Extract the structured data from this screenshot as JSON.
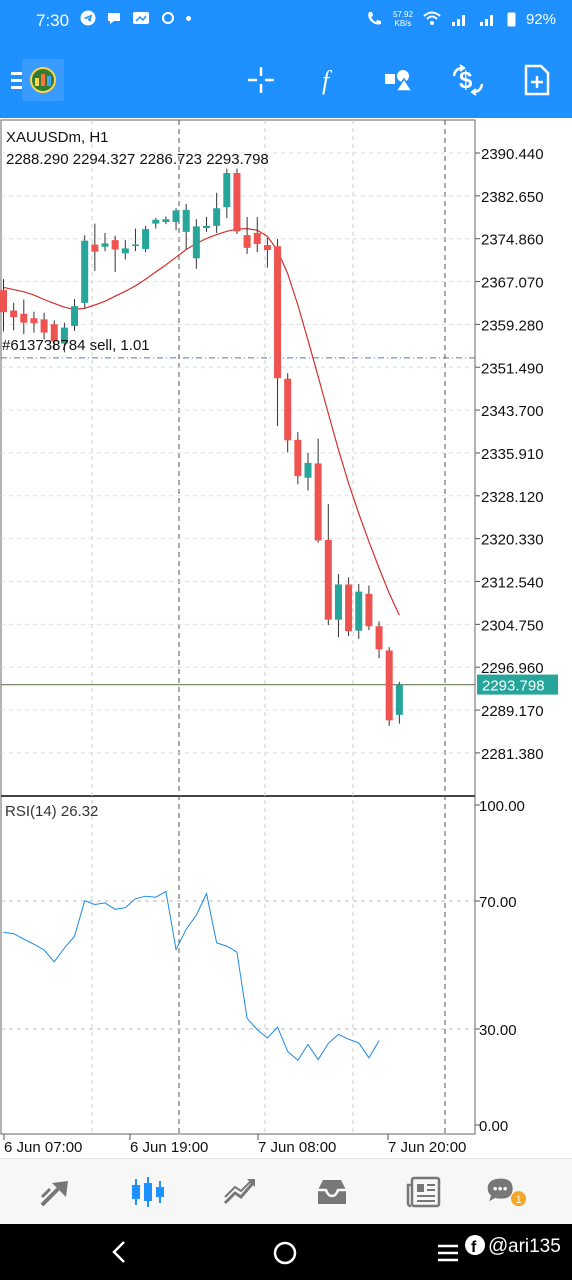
{
  "status_bar": {
    "time": "7:30",
    "net_speed": "57.92",
    "net_unit": "KB/s",
    "battery": "92%"
  },
  "toolbar": {
    "icons": [
      "menu-icon",
      "app-logo-icon",
      "crosshair-icon",
      "function-icon",
      "objects-icon",
      "trade-icon",
      "new-order-icon"
    ]
  },
  "chart": {
    "symbol": "XAUUSDm, H1",
    "ohlc": "2288.290 2294.327 2286.723 2293.798",
    "order_label": "#613738784 sell, 1.01",
    "price_badge": "2293.798",
    "price_labels": [
      "2390.440",
      "2382.650",
      "2374.860",
      "2367.070",
      "2359.280",
      "2351.490",
      "2343.700",
      "2335.910",
      "2328.120",
      "2320.330",
      "2312.540",
      "2304.750",
      "2296.960",
      "2289.170",
      "2281.380"
    ],
    "rsi_label": "RSI(14) 26.32",
    "rsi_levels": [
      "100.00",
      "70.00",
      "30.00",
      "0.00"
    ],
    "time_labels": [
      "6 Jun 07:00",
      "6 Jun 19:00",
      "7 Jun 08:00",
      "7 Jun 20:00"
    ],
    "colors": {
      "bull": "#26a69a",
      "bear": "#ef5350",
      "ma": "#d32f2f",
      "rsi": "#1e88e5",
      "accent": "#1e90ff"
    }
  },
  "chart_data": {
    "type": "candlestick",
    "symbol": "XAUUSDm",
    "timeframe": "H1",
    "ylim": [
      2276,
      2394
    ],
    "candles": [
      {
        "o": 2365.5,
        "h": 2367.5,
        "c": 2361.5,
        "l": 2358.0
      },
      {
        "o": 2361.8,
        "h": 2363.2,
        "c": 2360.6,
        "l": 2358.2
      },
      {
        "o": 2361.2,
        "h": 2363.8,
        "c": 2359.6,
        "l": 2357.5
      },
      {
        "o": 2360.4,
        "h": 2361.6,
        "c": 2359.5,
        "l": 2357.8
      },
      {
        "o": 2360.2,
        "h": 2361.4,
        "c": 2357.8,
        "l": 2356.5
      },
      {
        "o": 2359.3,
        "h": 2360.0,
        "c": 2356.2,
        "l": 2354.6
      },
      {
        "o": 2355.8,
        "h": 2359.6,
        "c": 2358.7,
        "l": 2354.2
      },
      {
        "o": 2359.0,
        "h": 2363.9,
        "c": 2362.6,
        "l": 2358.1
      },
      {
        "o": 2363.2,
        "h": 2375.5,
        "c": 2374.5,
        "l": 2362.2
      },
      {
        "o": 2373.8,
        "h": 2377.6,
        "c": 2372.5,
        "l": 2369.0
      },
      {
        "o": 2373.4,
        "h": 2375.9,
        "c": 2374.0,
        "l": 2372.6
      },
      {
        "o": 2374.6,
        "h": 2375.4,
        "c": 2372.9,
        "l": 2368.8
      },
      {
        "o": 2372.2,
        "h": 2374.6,
        "c": 2373.1,
        "l": 2371.1
      },
      {
        "o": 2373.8,
        "h": 2376.7,
        "c": 2373.8,
        "l": 2372.6
      },
      {
        "o": 2373.0,
        "h": 2377.2,
        "c": 2376.6,
        "l": 2372.4
      },
      {
        "o": 2377.6,
        "h": 2378.6,
        "c": 2378.3,
        "l": 2376.7
      },
      {
        "o": 2377.9,
        "h": 2378.9,
        "c": 2378.4,
        "l": 2377.5
      },
      {
        "o": 2377.9,
        "h": 2380.4,
        "c": 2380.0,
        "l": 2376.4
      },
      {
        "o": 2376.1,
        "h": 2381.2,
        "c": 2380.1,
        "l": 2373.0
      },
      {
        "o": 2371.3,
        "h": 2378.4,
        "c": 2377.1,
        "l": 2369.4
      },
      {
        "o": 2376.8,
        "h": 2378.8,
        "c": 2377.2,
        "l": 2376.1
      },
      {
        "o": 2377.2,
        "h": 2383.2,
        "c": 2380.4,
        "l": 2375.9
      },
      {
        "o": 2380.6,
        "h": 2387.6,
        "c": 2386.8,
        "l": 2378.6
      },
      {
        "o": 2386.8,
        "h": 2387.6,
        "c": 2376.2,
        "l": 2375.7
      },
      {
        "o": 2375.5,
        "h": 2378.8,
        "c": 2373.2,
        "l": 2372.1
      },
      {
        "o": 2375.9,
        "h": 2378.8,
        "c": 2373.9,
        "l": 2372.4
      },
      {
        "o": 2373.7,
        "h": 2375.0,
        "c": 2372.8,
        "l": 2369.6
      },
      {
        "o": 2373.5,
        "h": 2374.8,
        "c": 2349.5,
        "l": 2340.8
      },
      {
        "o": 2349.4,
        "h": 2350.4,
        "c": 2338.2,
        "l": 2336.0
      },
      {
        "o": 2338.3,
        "h": 2339.7,
        "c": 2331.7,
        "l": 2330.2
      },
      {
        "o": 2331.4,
        "h": 2335.9,
        "c": 2334.1,
        "l": 2329.1
      },
      {
        "o": 2334.0,
        "h": 2338.5,
        "c": 2320.0,
        "l": 2319.6
      },
      {
        "o": 2320.1,
        "h": 2326.6,
        "c": 2305.6,
        "l": 2304.6
      },
      {
        "o": 2305.6,
        "h": 2313.9,
        "c": 2312.0,
        "l": 2302.4
      },
      {
        "o": 2312.0,
        "h": 2313.3,
        "c": 2303.5,
        "l": 2302.6
      },
      {
        "o": 2303.6,
        "h": 2312.1,
        "c": 2310.7,
        "l": 2302.1
      },
      {
        "o": 2310.3,
        "h": 2311.8,
        "c": 2304.4,
        "l": 2303.7
      },
      {
        "o": 2304.4,
        "h": 2305.3,
        "c": 2300.2,
        "l": 2298.6
      },
      {
        "o": 2300.0,
        "h": 2300.6,
        "c": 2287.3,
        "l": 2286.3
      },
      {
        "o": 2288.3,
        "h": 2294.3,
        "c": 2293.8,
        "l": 2286.7
      }
    ],
    "ma": [
      2366.0,
      2365.6,
      2365.2,
      2364.6,
      2363.8,
      2363.1,
      2362.4,
      2362.0,
      2362.2,
      2362.8,
      2363.5,
      2364.4,
      2365.3,
      2366.3,
      2367.5,
      2368.8,
      2370.1,
      2371.5,
      2372.9,
      2374.0,
      2374.9,
      2375.6,
      2376.2,
      2376.6,
      2376.7,
      2376.4,
      2375.3,
      2372.7,
      2368.5,
      2362.8,
      2356.4,
      2349.8,
      2343.1,
      2336.5,
      2330.4,
      2324.9,
      2319.8,
      2315.0,
      2310.4,
      2306.4
    ],
    "order_price": 2353.2,
    "current_price": 2293.798,
    "rsi": {
      "period": 14,
      "ylim": [
        0,
        100
      ],
      "levels": [
        30,
        70
      ],
      "values": [
        60.2,
        59.8,
        58.1,
        56.5,
        54.7,
        51.0,
        55.3,
        59.0,
        70.1,
        68.9,
        69.4,
        67.4,
        67.9,
        70.7,
        71.5,
        71.2,
        73.0,
        54.8,
        61.2,
        65.6,
        72.3,
        56.9,
        55.9,
        54.0,
        33.3,
        29.8,
        27.2,
        30.6,
        23.0,
        20.2,
        25.2,
        20.4,
        25.5,
        28.3,
        26.8,
        25.7,
        21.0,
        26.3
      ]
    },
    "x_labels": [
      "6 Jun 07:00",
      "6 Jun 19:00",
      "7 Jun 08:00",
      "7 Jun 20:00"
    ]
  }
}
